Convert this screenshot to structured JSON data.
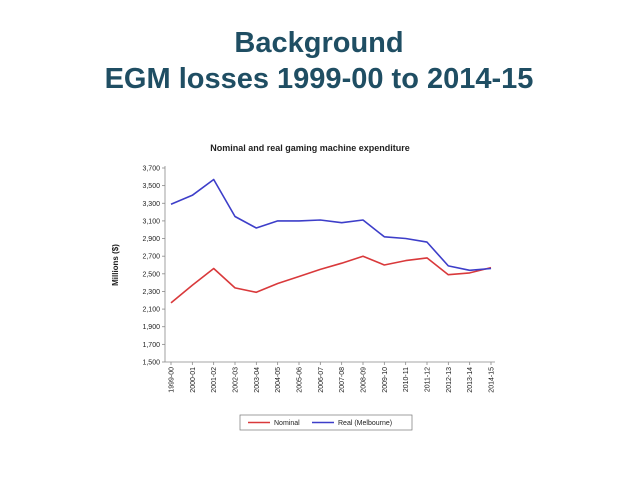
{
  "slide": {
    "title_line1": "Background",
    "title_line2": "EGM losses 1999-00 to 2014-15"
  },
  "colors": {
    "title": "#1f4e63",
    "nominal": "#d9393b",
    "real": "#3d3ec9"
  },
  "chart_data": {
    "type": "line",
    "title": "Nominal and real gaming machine expenditure",
    "xlabel": "",
    "ylabel": "Millions ($)",
    "categories": [
      "1999-00",
      "2000-01",
      "2001-02",
      "2002-03",
      "2003-04",
      "2004-05",
      "2005-06",
      "2006-07",
      "2007-08",
      "2008-09",
      "2009-10",
      "2010-11",
      "2011-12",
      "2012-13",
      "2013-14",
      "2014-15"
    ],
    "yticks": [
      "1,500",
      "1,700",
      "1,900",
      "2,100",
      "2,300",
      "2,500",
      "2,700",
      "2,900",
      "3,100",
      "3,300",
      "3,500",
      "3,700"
    ],
    "ylim": [
      1500,
      3700
    ],
    "series": [
      {
        "name": "Nominal",
        "color": "#d9393b",
        "values": [
          2170,
          2370,
          2560,
          2340,
          2290,
          2390,
          2470,
          2550,
          2620,
          2700,
          2600,
          2650,
          2680,
          2490,
          2510,
          2570
        ]
      },
      {
        "name": "Real (Melbourne)",
        "color": "#3d3ec9",
        "values": [
          3290,
          3390,
          3570,
          3150,
          3020,
          3100,
          3100,
          3110,
          3080,
          3110,
          2920,
          2900,
          2860,
          2590,
          2540,
          2560
        ]
      }
    ],
    "legend": {
      "position": "bottom",
      "entries": [
        "Nominal",
        "Real (Melbourne)"
      ]
    }
  }
}
